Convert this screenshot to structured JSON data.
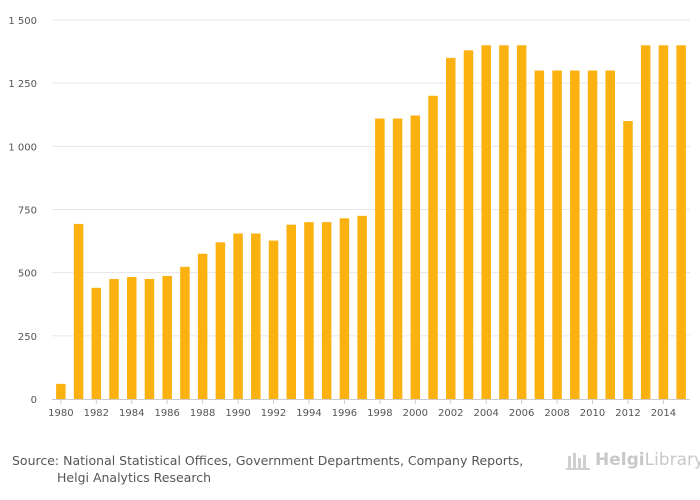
{
  "chart_data": {
    "type": "bar",
    "title": "",
    "xlabel": "",
    "ylabel": "",
    "ylim": [
      0,
      1500
    ],
    "yticks": [
      0,
      250,
      500,
      750,
      1000,
      1250,
      1500
    ],
    "ytick_labels": [
      "0",
      "250",
      "500",
      "750",
      "1 000",
      "1 250",
      "1 500"
    ],
    "categories": [
      "1980",
      "1981",
      "1982",
      "1983",
      "1984",
      "1985",
      "1986",
      "1987",
      "1988",
      "1989",
      "1990",
      "1991",
      "1992",
      "1993",
      "1994",
      "1995",
      "1996",
      "1997",
      "1998",
      "1999",
      "2000",
      "2001",
      "2002",
      "2003",
      "2004",
      "2005",
      "2006",
      "2007",
      "2008",
      "2009",
      "2010",
      "2011",
      "2012",
      "2013",
      "2014",
      "2015"
    ],
    "xtick_labels": [
      "1980",
      "1982",
      "1984",
      "1986",
      "1988",
      "1990",
      "1992",
      "1994",
      "1996",
      "1998",
      "2000",
      "2002",
      "2004",
      "2006",
      "2008",
      "2010",
      "2012",
      "2014"
    ],
    "values": [
      60,
      693,
      440,
      475,
      483,
      475,
      487,
      523,
      575,
      620,
      655,
      655,
      627,
      690,
      700,
      700,
      715,
      725,
      1110,
      1110,
      1122,
      1200,
      1350,
      1380,
      1400,
      1400,
      1400,
      1300,
      1300,
      1300,
      1300,
      1300,
      1100,
      1400,
      1400,
      1400
    ],
    "bar_color": "#FBB10F",
    "grid_color": "#e6e6e6"
  },
  "footer": {
    "source_line1": "Source: National Statistical Offices, Government Departments, Company Reports,",
    "source_line2": "Helgi Analytics Research",
    "logo_part1": "Helgi",
    "logo_part2": "Library"
  }
}
